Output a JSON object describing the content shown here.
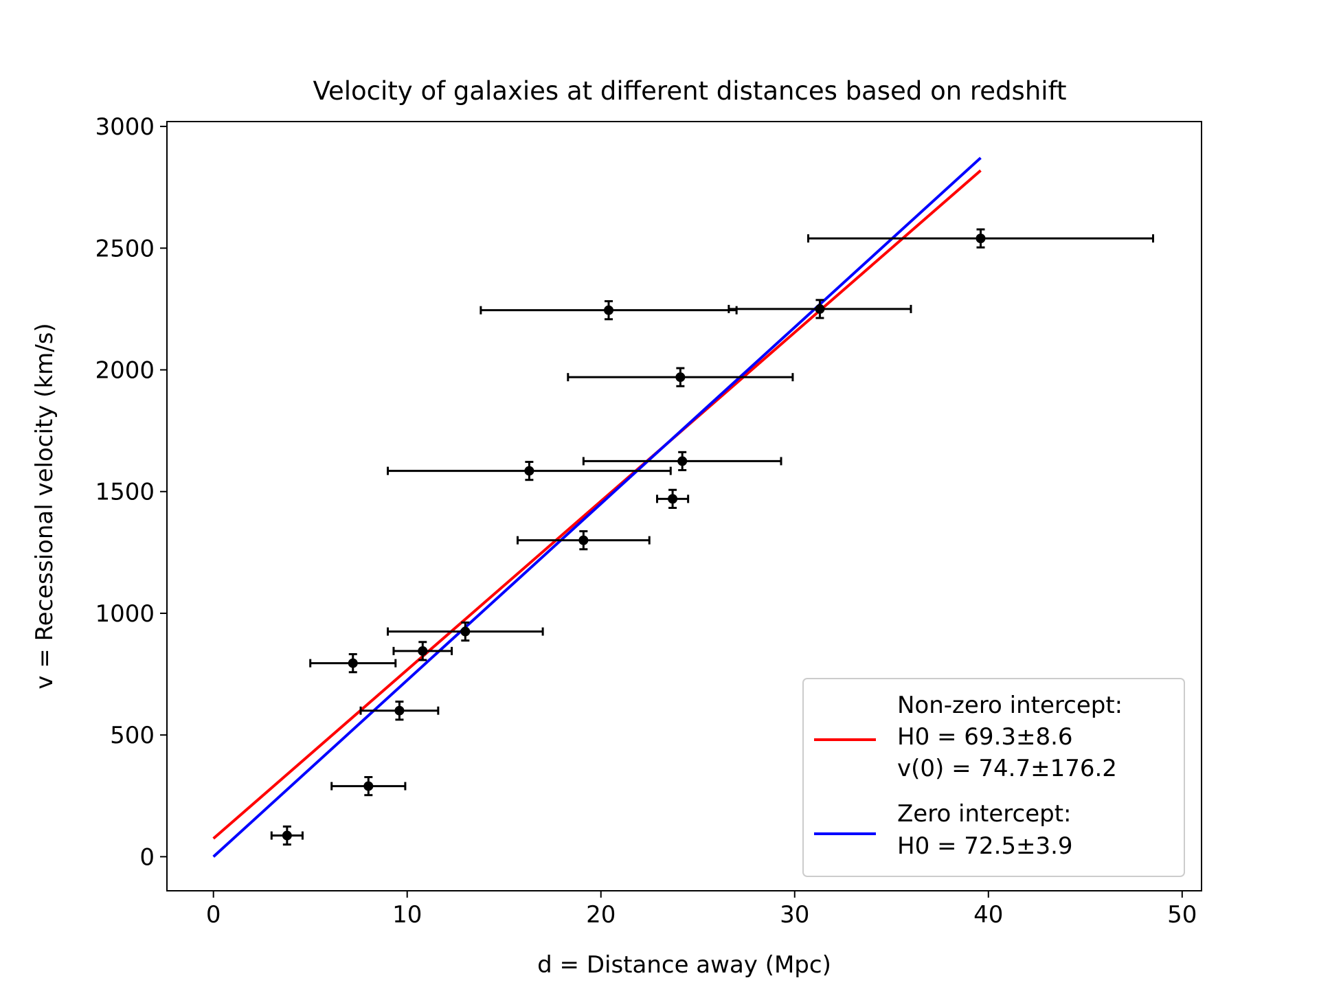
{
  "chart_data": {
    "type": "scatter",
    "title": "Velocity of galaxies at different distances based on redshift",
    "xlabel": "d = Distance away (Mpc)",
    "ylabel": "v = Recessional velocity (km/s)",
    "xlim": [
      -2.4,
      51.0
    ],
    "ylim": [
      -140,
      3020
    ],
    "xticks": [
      0,
      10,
      20,
      30,
      40,
      50
    ],
    "yticks": [
      0,
      500,
      1000,
      1500,
      2000,
      2500,
      3000
    ],
    "grid": false,
    "legend_position": "lower-right",
    "series": [
      {
        "kind": "errorbar",
        "color": "#000000",
        "points": [
          {
            "x": 3.8,
            "y": 87,
            "xerr": 0.8,
            "yerr": 37
          },
          {
            "x": 8.0,
            "y": 290,
            "xerr": 1.9,
            "yerr": 37
          },
          {
            "x": 9.6,
            "y": 600,
            "xerr": 2.0,
            "yerr": 37
          },
          {
            "x": 7.2,
            "y": 795,
            "xerr": 2.2,
            "yerr": 37
          },
          {
            "x": 10.8,
            "y": 845,
            "xerr": 1.5,
            "yerr": 37
          },
          {
            "x": 13.0,
            "y": 925,
            "xerr": 4.0,
            "yerr": 37
          },
          {
            "x": 19.1,
            "y": 1300,
            "xerr": 3.4,
            "yerr": 37
          },
          {
            "x": 23.7,
            "y": 1470,
            "xerr": 0.8,
            "yerr": 37
          },
          {
            "x": 16.3,
            "y": 1585,
            "xerr": 7.3,
            "yerr": 37
          },
          {
            "x": 24.2,
            "y": 1625,
            "xerr": 5.1,
            "yerr": 37
          },
          {
            "x": 24.1,
            "y": 1970,
            "xerr": 5.8,
            "yerr": 37
          },
          {
            "x": 20.4,
            "y": 2245,
            "xerr": 6.6,
            "yerr": 37
          },
          {
            "x": 31.3,
            "y": 2250,
            "xerr": 4.7,
            "yerr": 37
          },
          {
            "x": 39.6,
            "y": 2540,
            "xerr": 8.9,
            "yerr": 37
          }
        ]
      },
      {
        "kind": "line",
        "color": "#ff0000",
        "x": [
          0,
          39.6
        ],
        "y": [
          74.7,
          2819
        ]
      },
      {
        "kind": "line",
        "color": "#0000ff",
        "x": [
          0,
          39.6
        ],
        "y": [
          0,
          2871
        ]
      }
    ],
    "legend": [
      {
        "color": "#ff0000",
        "lines": [
          "Non-zero intercept:",
          "H0 = 69.3±8.6",
          "v(0) = 74.7±176.2"
        ]
      },
      {
        "color": "#0000ff",
        "lines": [
          "Zero intercept:",
          "H0 = 72.5±3.9"
        ]
      }
    ]
  }
}
